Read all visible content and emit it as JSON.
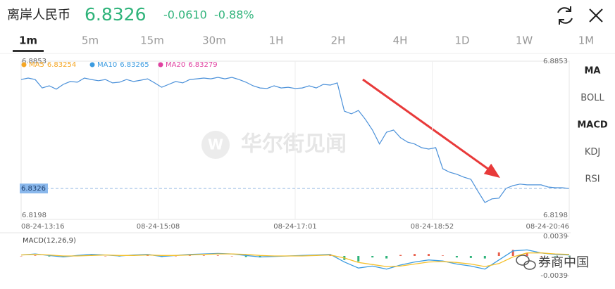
{
  "header": {
    "title": "离岸人民币",
    "price": "6.8326",
    "change": "-0.0610",
    "change_percent": "-0.88%"
  },
  "tabs": {
    "items": [
      "1m",
      "5m",
      "15m",
      "30m",
      "1H",
      "2H",
      "4H",
      "1D",
      "1W",
      "1M"
    ],
    "selected": 0
  },
  "indicators": {
    "items": [
      "MA",
      "BOLL",
      "MACD",
      "KDJ",
      "RSI"
    ],
    "active": [
      0,
      2
    ]
  },
  "watermarks": [
    "华尔街见闻",
    "券商中国"
  ],
  "chart_data": [
    {
      "type": "line",
      "color": "#4a90d9",
      "legend": [
        {
          "name": "MA5",
          "value": "6.83254",
          "color": "#f5a623"
        },
        {
          "name": "MA10",
          "value": "6.83265",
          "color": "#3b9be0"
        },
        {
          "name": "MA20",
          "value": "6.83279",
          "color": "#e040a0"
        }
      ],
      "xtick_labels": [
        "08-24-13:16",
        "08-24-15:08",
        "08-24-17:01",
        "08-24-18:52",
        "08-24-20:46"
      ],
      "ylim": [
        6.8198,
        6.8853
      ],
      "yticks": [
        6.8198,
        6.8853
      ],
      "last_value": 6.8326,
      "grid": true,
      "values": [
        6.8777,
        6.8783,
        6.8777,
        6.8742,
        6.8751,
        6.8737,
        6.8757,
        6.8769,
        6.8766,
        6.8783,
        6.8777,
        6.8772,
        6.8777,
        6.8763,
        6.8766,
        6.8777,
        6.8769,
        6.8774,
        6.878,
        6.8763,
        6.8745,
        6.8757,
        6.8769,
        6.8763,
        6.8777,
        6.878,
        6.8783,
        6.878,
        6.8786,
        6.878,
        6.8786,
        6.8777,
        6.8766,
        6.8751,
        6.8742,
        6.874,
        6.8751,
        6.8742,
        6.8745,
        6.874,
        6.8742,
        6.8751,
        6.8742,
        6.8757,
        6.8754,
        6.8763,
        6.8646,
        6.8635,
        6.8649,
        6.8612,
        6.8568,
        6.851,
        6.8559,
        6.8568,
        6.8536,
        6.8518,
        6.851,
        6.8495,
        6.8489,
        6.8495,
        6.8408,
        6.8393,
        6.8385,
        6.8373,
        6.8364,
        6.8315,
        6.8268,
        6.8283,
        6.8286,
        6.8326,
        6.8338,
        6.8344,
        6.8341,
        6.8341,
        6.8341,
        6.8332,
        6.8329,
        6.8329,
        6.8326
      ]
    },
    {
      "type": "macd",
      "title": "MACD(12,26,9)",
      "ylim": [
        -0.0039,
        0.0039
      ],
      "yticks": [
        0.0039,
        -0.0039
      ],
      "up_color": "#e8604c",
      "down_color": "#2fb37a",
      "dif": {
        "color": "#3b9be0",
        "values": [
          0.0002,
          0.0004,
          0.0001,
          -0.0002,
          0.0001,
          0.0003,
          0.0002,
          0.0,
          0.0002,
          0.0003,
          -0.0001,
          0.0001,
          0.0003,
          0.0004,
          0.0005,
          0.0004,
          0.0001,
          -0.0002,
          -0.0001,
          0.0,
          0.0001,
          0.0002,
          0.0003,
          -0.0012,
          -0.0024,
          -0.002,
          -0.0026,
          -0.0018,
          -0.0012,
          -0.0008,
          -0.001,
          -0.0016,
          -0.002,
          -0.0026,
          -0.0008,
          0.001,
          0.0012,
          0.0006,
          0.0003,
          0.0002
        ]
      },
      "dea": {
        "color": "#f5c02a",
        "values": [
          0.0002,
          0.0003,
          0.0002,
          0.0,
          0.0,
          0.0001,
          0.0002,
          0.0001,
          0.0001,
          0.0002,
          0.0001,
          0.0001,
          0.0002,
          0.0003,
          0.0004,
          0.0004,
          0.0003,
          0.0001,
          0.0,
          0.0,
          0.0,
          0.0001,
          0.0002,
          -0.0004,
          -0.0013,
          -0.0017,
          -0.0021,
          -0.002,
          -0.0016,
          -0.0012,
          -0.0011,
          -0.0013,
          -0.0016,
          -0.0021,
          -0.0015,
          -0.0002,
          0.0006,
          0.0006,
          0.0004,
          0.0003
        ]
      },
      "histogram": [
        0,
        0.0001,
        -0.0001,
        -0.0002,
        0.0001,
        0.0002,
        0,
        -0.0001,
        0.0001,
        0.0001,
        -0.0002,
        0,
        0.0001,
        0.0001,
        0.0001,
        0,
        -0.0002,
        -0.0003,
        -0.0001,
        0,
        0.0001,
        0.0001,
        0.0001,
        -0.0008,
        -0.0011,
        -0.0003,
        -0.0005,
        0.0002,
        0.0004,
        0.0004,
        0.0001,
        -0.0003,
        -0.0004,
        -0.0005,
        0.0007,
        0.0012,
        0.0006,
        0,
        -0.0001,
        -0.0001
      ]
    }
  ]
}
